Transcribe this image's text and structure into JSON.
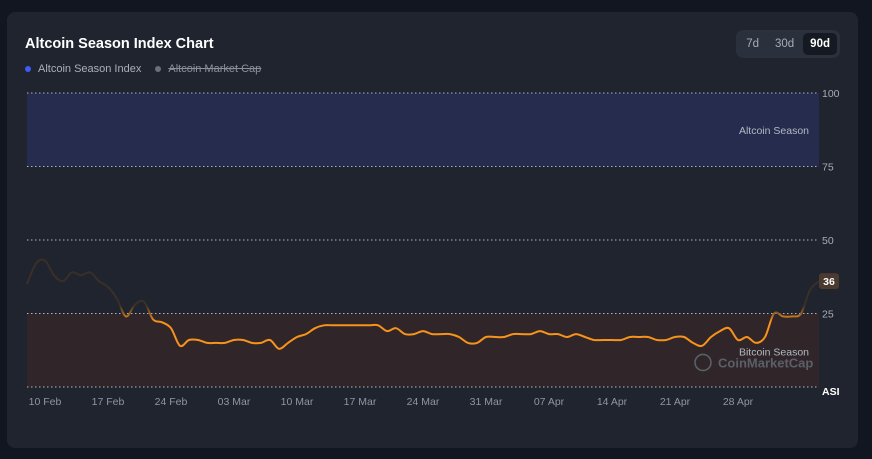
{
  "header": {
    "title": "Altcoin Season Index Chart"
  },
  "legend": {
    "items": [
      {
        "label": "Altcoin Season Index",
        "color": "#3d5cf5",
        "active": true
      },
      {
        "label": "Altcoin Market Cap",
        "color": "#6b6f78",
        "active": false
      }
    ]
  },
  "tabs": [
    {
      "label": "7d",
      "active": false
    },
    {
      "label": "30d",
      "active": false
    },
    {
      "label": "90d",
      "active": true
    }
  ],
  "zones": {
    "altcoin_label": "Altcoin Season",
    "bitcoin_label": "Bitcoin Season"
  },
  "watermark": "CoinMarketCap",
  "colors": {
    "series_line": "#f7931a",
    "series_line_dim": "#3a2f28",
    "altcoin_zone": "#262c4d",
    "bitcoin_zone": "#302629",
    "current_badge": "#4a3a30"
  },
  "chart_data": {
    "type": "line",
    "title": "Altcoin Season Index Chart",
    "ylabel": "ASI",
    "ylim": [
      0,
      100
    ],
    "y_ticks": [
      100,
      75,
      50,
      25
    ],
    "x_tick_labels": [
      "10 Feb",
      "17 Feb",
      "24 Feb",
      "03 Mar",
      "10 Mar",
      "17 Mar",
      "24 Mar",
      "31 Mar",
      "07 Apr",
      "14 Apr",
      "21 Apr",
      "28 Apr"
    ],
    "x_start": "2025-02-08",
    "current_value": 36,
    "current_label": "36",
    "series": [
      {
        "name": "Altcoin Season Index",
        "x": [
          "2025-02-08",
          "2025-02-09",
          "2025-02-10",
          "2025-02-11",
          "2025-02-12",
          "2025-02-13",
          "2025-02-14",
          "2025-02-15",
          "2025-02-16",
          "2025-02-17",
          "2025-02-18",
          "2025-02-19",
          "2025-02-20",
          "2025-02-21",
          "2025-02-22",
          "2025-02-23",
          "2025-02-24",
          "2025-02-25",
          "2025-02-26",
          "2025-02-27",
          "2025-02-28",
          "2025-03-01",
          "2025-03-02",
          "2025-03-03",
          "2025-03-04",
          "2025-03-05",
          "2025-03-06",
          "2025-03-07",
          "2025-03-08",
          "2025-03-09",
          "2025-03-10",
          "2025-03-11",
          "2025-03-12",
          "2025-03-13",
          "2025-03-14",
          "2025-03-15",
          "2025-03-16",
          "2025-03-17",
          "2025-03-18",
          "2025-03-19",
          "2025-03-20",
          "2025-03-21",
          "2025-03-22",
          "2025-03-23",
          "2025-03-24",
          "2025-03-25",
          "2025-03-26",
          "2025-03-27",
          "2025-03-28",
          "2025-03-29",
          "2025-03-30",
          "2025-03-31",
          "2025-04-01",
          "2025-04-02",
          "2025-04-03",
          "2025-04-04",
          "2025-04-05",
          "2025-04-06",
          "2025-04-07",
          "2025-04-08",
          "2025-04-09",
          "2025-04-10",
          "2025-04-11",
          "2025-04-12",
          "2025-04-13",
          "2025-04-14",
          "2025-04-15",
          "2025-04-16",
          "2025-04-17",
          "2025-04-18",
          "2025-04-19",
          "2025-04-20",
          "2025-04-21",
          "2025-04-22",
          "2025-04-23",
          "2025-04-24",
          "2025-04-25",
          "2025-04-26",
          "2025-04-27",
          "2025-04-28",
          "2025-04-29",
          "2025-04-30",
          "2025-05-01",
          "2025-05-02",
          "2025-05-03",
          "2025-05-04",
          "2025-05-05",
          "2025-05-06",
          "2025-05-07"
        ],
        "values": [
          35,
          42,
          43,
          38,
          36,
          39,
          38,
          39,
          36,
          34,
          30,
          24,
          28,
          29,
          23,
          22,
          20,
          14,
          16,
          16,
          15,
          15,
          15,
          16,
          16,
          15,
          15,
          16,
          13,
          15,
          17,
          18,
          20,
          21,
          21,
          21,
          21,
          21,
          21,
          21,
          19,
          20,
          18,
          18,
          19,
          18,
          18,
          18,
          17,
          15,
          15,
          17,
          17,
          17,
          18,
          18,
          18,
          19,
          18,
          18,
          17,
          18,
          17,
          16,
          16,
          16,
          16,
          17,
          17,
          17,
          16,
          16,
          17,
          17,
          15,
          14,
          17,
          19,
          20,
          16,
          17,
          15,
          17,
          25,
          24,
          24,
          25,
          33,
          36
        ]
      }
    ]
  }
}
